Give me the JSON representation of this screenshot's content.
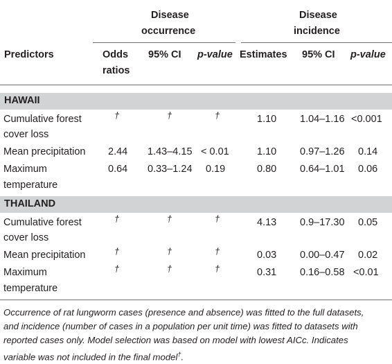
{
  "header": {
    "group1_line1": "Disease",
    "group1_line2": "occurrence",
    "group2_line1": "Disease",
    "group2_line2": "incidence",
    "predictors": "Predictors",
    "odds_line1": "Odds",
    "odds_line2": "ratios",
    "ci1": "95% CI",
    "pvalue1": "p-value",
    "estimates": "Estimates",
    "ci2": "95% CI",
    "pvalue2": "p-value"
  },
  "sections": [
    {
      "name": "HAWAII",
      "rows": [
        {
          "pred1": "Cumulative forest",
          "pred2": "cover loss",
          "odds": "†",
          "ci1": "†",
          "p1": "†",
          "est": "1.10",
          "ci2": "1.04–1.16",
          "p2": "<0.001"
        },
        {
          "pred1": "Mean precipitation",
          "pred2": "",
          "odds": "2.44",
          "ci1": "1.43–4.15",
          "p1": "< 0.01",
          "est": "1.10",
          "ci2": "0.97–1.26",
          "p2": "0.14"
        },
        {
          "pred1": "Maximum",
          "pred2": "temperature",
          "odds": "0.64",
          "ci1": "0.33–1.24",
          "p1": "0.19",
          "est": "0.80",
          "ci2": "0.64–1.01",
          "p2": "0.06"
        }
      ]
    },
    {
      "name": "THAILAND",
      "rows": [
        {
          "pred1": "Cumulative forest",
          "pred2": "cover loss",
          "odds": "†",
          "ci1": "†",
          "p1": "†",
          "est": "4.13",
          "ci2": "0.9–17.30",
          "p2": "0.05"
        },
        {
          "pred1": "Mean precipitation",
          "pred2": "",
          "odds": "†",
          "ci1": "†",
          "p1": "†",
          "est": "0.03",
          "ci2": "0.00–0.47",
          "p2": "0.02"
        },
        {
          "pred1": "Maximum",
          "pred2": "temperature",
          "odds": "†",
          "ci1": "†",
          "p1": "†",
          "est": "0.31",
          "ci2": "0.16–0.58",
          "p2": "<0.01"
        }
      ]
    }
  ],
  "footnote": {
    "line1": "Occurrence of rat lungworm cases (presence and absence) was fitted to the full datasets,",
    "line2": "and incidence (number of cases in a population per unit time) was fitted to datasets with",
    "line3": "reported cases only. Model selection was based on model with lowest AICc. Indicates",
    "line4": "variable was not included in the final model",
    "line4_sup": "†",
    "line4_end": "."
  }
}
